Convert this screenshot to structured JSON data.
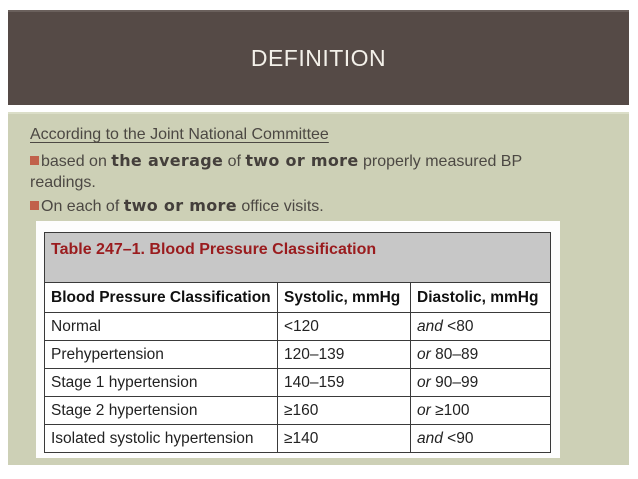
{
  "slide": {
    "title": "DEFINITION"
  },
  "body": {
    "heading": "According to the Joint National Committee",
    "lines": [
      {
        "bullet": true,
        "segments": [
          {
            "text": "based on ",
            "bold": false
          },
          {
            "text": "the average",
            "bold": true
          },
          {
            "text": " of ",
            "bold": false
          },
          {
            "text": "two or more",
            "bold": true
          },
          {
            "text": " properly measured BP",
            "bold": false
          }
        ]
      },
      {
        "bullet": false,
        "segments": [
          {
            "text": "readings.",
            "bold": false
          }
        ]
      },
      {
        "bullet": true,
        "segments": [
          {
            "text": "On each of ",
            "bold": false
          },
          {
            "text": "two or more",
            "bold": true
          },
          {
            "text": " office visits.",
            "bold": false
          }
        ]
      }
    ]
  },
  "table": {
    "title": "Table 247–1. Blood Pressure Classification",
    "headers": [
      "Blood Pressure Classification",
      "Systolic, mmHg",
      "Diastolic, mmHg"
    ],
    "rows": [
      {
        "classification": "Normal",
        "systolic": "<120",
        "diastolic_conj": "and",
        "diastolic_value": "<80"
      },
      {
        "classification": "Prehypertension",
        "systolic": "120–139",
        "diastolic_conj": "or",
        "diastolic_value": "80–89"
      },
      {
        "classification": "Stage 1 hypertension",
        "systolic": "140–159",
        "diastolic_conj": "or",
        "diastolic_value": "90–99"
      },
      {
        "classification": "Stage 2 hypertension",
        "systolic": "≥160",
        "diastolic_conj": "or",
        "diastolic_value": "≥100"
      },
      {
        "classification": "Isolated systolic hypertension",
        "systolic": "≥140",
        "diastolic_conj": "and",
        "diastolic_value": "<90"
      }
    ]
  },
  "colors": {
    "header_bg": "#554a46",
    "header_text": "#f3f0e9",
    "panel_bg": "#cdd0b6",
    "body_text": "#4c4843",
    "bullet": "#c1614b",
    "table_title_bg": "#c7c7c7",
    "table_title_text": "#9a1b1e",
    "table_border": "#3a3a3a"
  }
}
